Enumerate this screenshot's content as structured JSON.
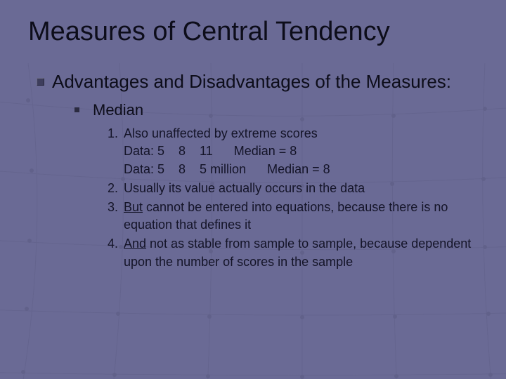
{
  "background_color": "#6a6a95",
  "grid_line_color": "#5a5a80",
  "text_color": "#0d0d1a",
  "title": "Measures of Central Tendency",
  "title_fontsize": 38,
  "level1_bullet": {
    "shape": "square",
    "color": "#3d3d5c",
    "size": 11
  },
  "level1_text": "Advantages and Disadvantages of the Measures:",
  "level1_fontsize": 26,
  "level2_bullet": {
    "shape": "square",
    "color": "#2b2b40",
    "size": 7
  },
  "level2_text": "Median",
  "level2_fontsize": 22,
  "numbered_fontsize": 18,
  "items": [
    {
      "n": "1.",
      "lines": [
        "Also unaffected by extreme scores",
        "Data: 5    8    11      Median = 8",
        "Data: 5    8    5 million      Median = 8"
      ]
    },
    {
      "n": "2.",
      "lines": [
        "Usually its value actually occurs in the data"
      ]
    },
    {
      "n": "3.",
      "underline_first_word": true,
      "first_word": "But",
      "rest": " cannot be entered into equations, because there is no equation that defines it"
    },
    {
      "n": "4.",
      "underline_first_word": true,
      "first_word": "And",
      "rest": " not as stable from sample to sample, because dependent upon the number of scores in the sample"
    }
  ]
}
